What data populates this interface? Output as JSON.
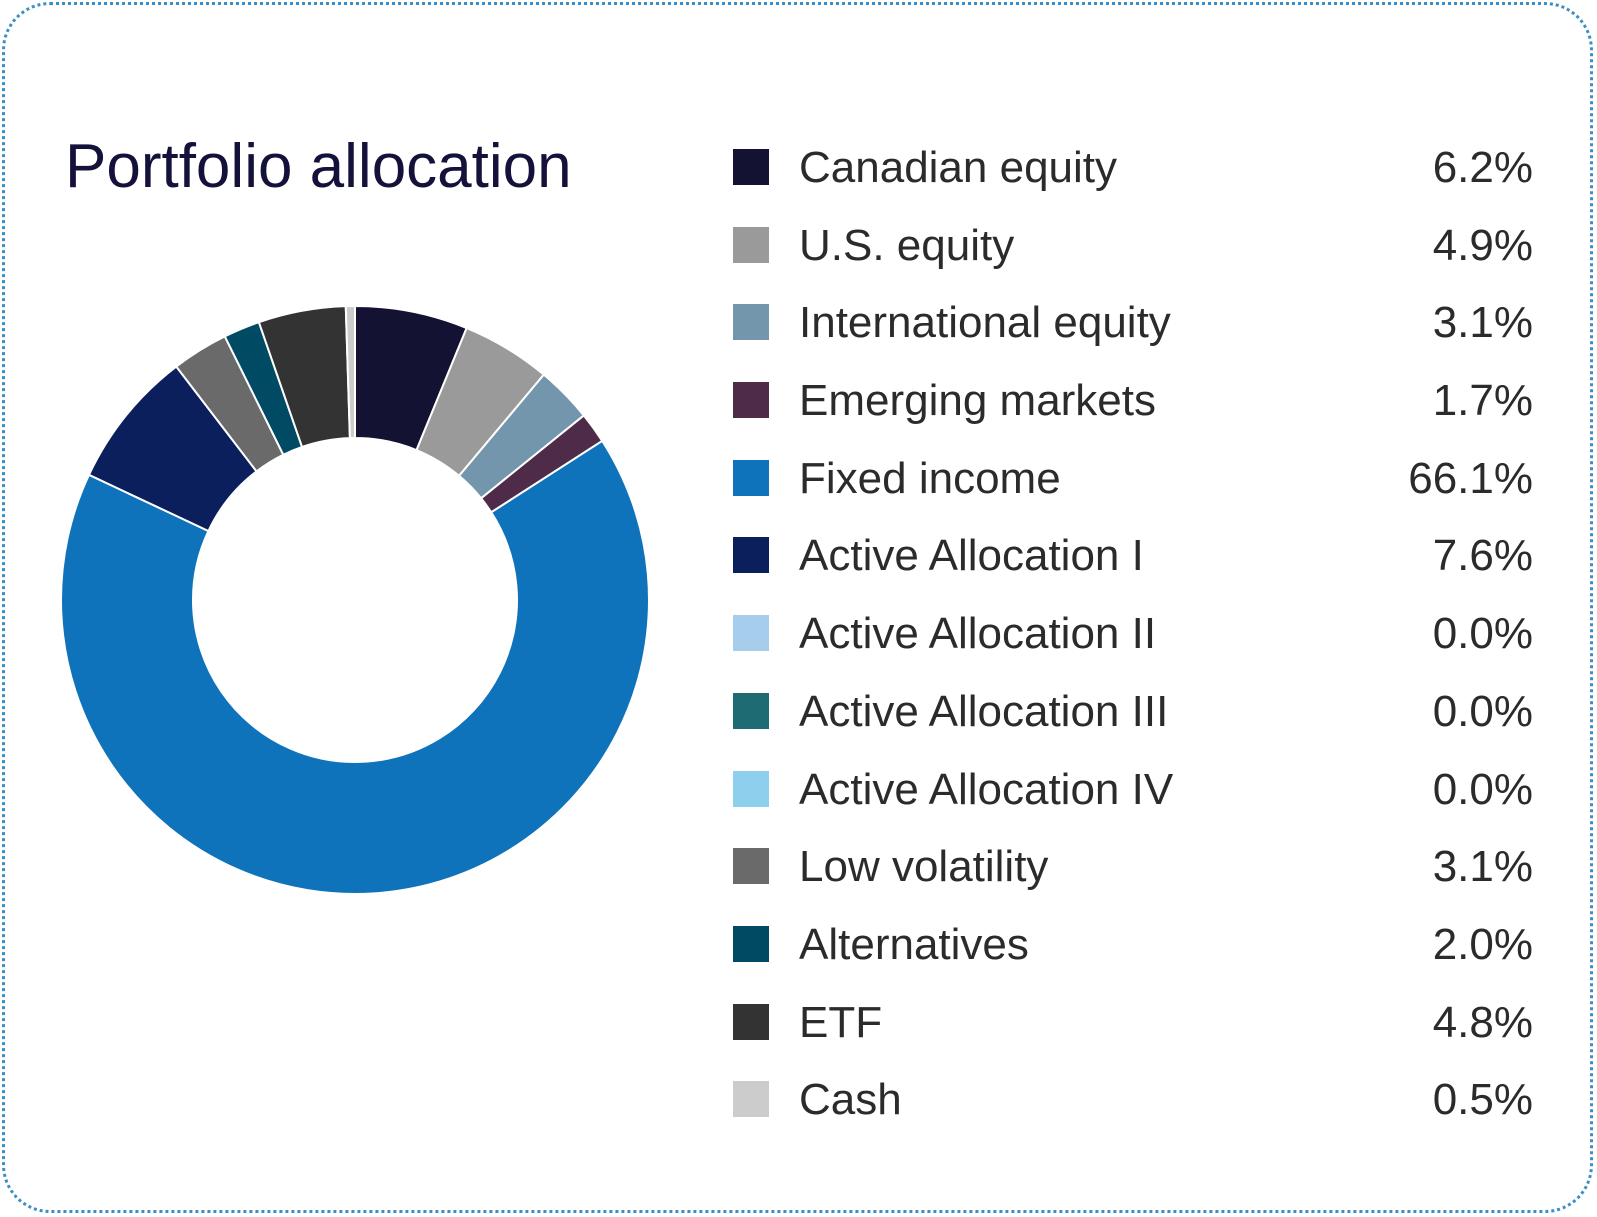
{
  "chart_data": {
    "type": "pie",
    "title": "Portfolio allocation",
    "donut": true,
    "legend_position": "right",
    "slices": [
      {
        "label": "Canadian equity",
        "value": 6.2,
        "display": "6.2%",
        "color": "#141233"
      },
      {
        "label": "U.S. equity",
        "value": 4.9,
        "display": "4.9%",
        "color": "#9a9a9a"
      },
      {
        "label": "International equity",
        "value": 3.1,
        "display": "3.1%",
        "color": "#7396ad"
      },
      {
        "label": "Emerging markets",
        "value": 1.7,
        "display": "1.7%",
        "color": "#4f2b4a"
      },
      {
        "label": "Fixed income",
        "value": 66.1,
        "display": "66.1%",
        "color": "#0f73bb"
      },
      {
        "label": "Active Allocation I",
        "value": 7.6,
        "display": "7.6%",
        "color": "#0b1f5c"
      },
      {
        "label": "Active Allocation II",
        "value": 0.0,
        "display": "0.0%",
        "color": "#a7cdec"
      },
      {
        "label": "Active Allocation III",
        "value": 0.0,
        "display": "0.0%",
        "color": "#1e6b73"
      },
      {
        "label": "Active Allocation IV",
        "value": 0.0,
        "display": "0.0%",
        "color": "#8fcfee"
      },
      {
        "label": "Low volatility",
        "value": 3.1,
        "display": "3.1%",
        "color": "#6a6a6a"
      },
      {
        "label": "Alternatives",
        "value": 2.0,
        "display": "2.0%",
        "color": "#004b63"
      },
      {
        "label": "ETF",
        "value": 4.8,
        "display": "4.8%",
        "color": "#333333"
      },
      {
        "label": "Cash",
        "value": 0.5,
        "display": "0.5%",
        "color": "#cccccc"
      }
    ]
  }
}
